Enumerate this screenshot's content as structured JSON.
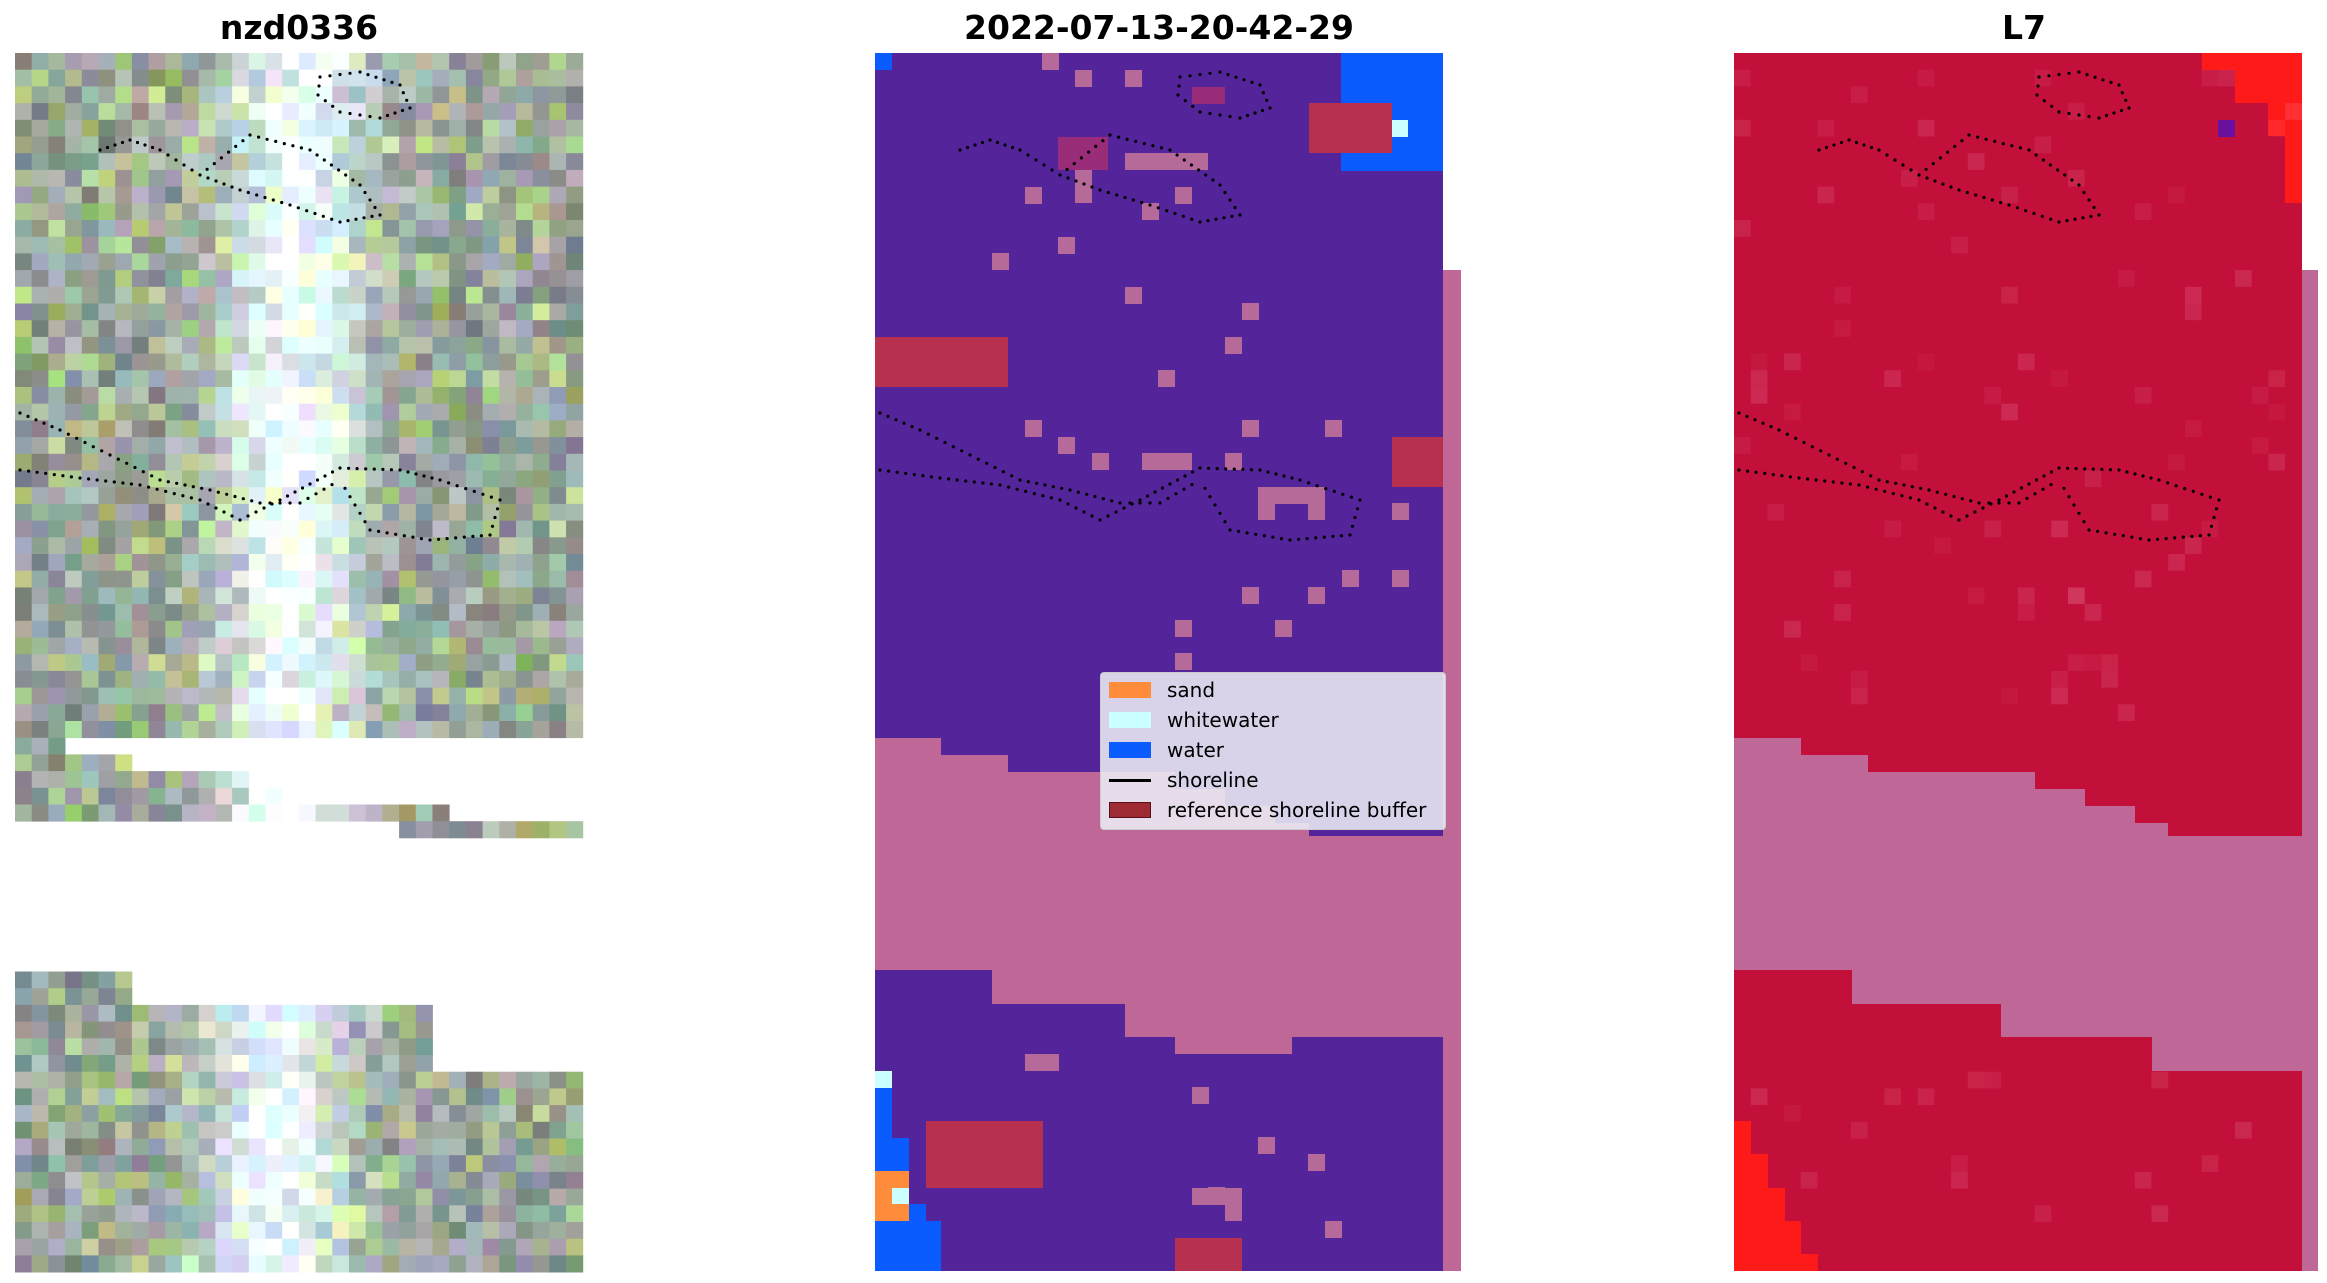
{
  "panels": [
    {
      "title": "nzd0336"
    },
    {
      "title": "2022-07-13-20-42-29"
    },
    {
      "title": "L7"
    }
  ],
  "legend": {
    "items": [
      {
        "label": "sand",
        "color": "#ff8c3a",
        "kind": "patch"
      },
      {
        "label": "whitewater",
        "color": "#ccffff",
        "kind": "patch"
      },
      {
        "label": "water",
        "color": "#0a5cff",
        "kind": "patch"
      },
      {
        "label": "shoreline",
        "color": "#000000",
        "kind": "line"
      },
      {
        "label": "reference shoreline buffer",
        "color": "#9e2a33",
        "kind": "patch"
      }
    ]
  },
  "colors": {
    "background": "#ffffff",
    "class_other": "#54249a",
    "buffer_overlay": "#bf6898",
    "l7_index": "#c2103a",
    "l7_high": "#ff1a1a",
    "rgb_base": "#8c9c9a"
  }
}
